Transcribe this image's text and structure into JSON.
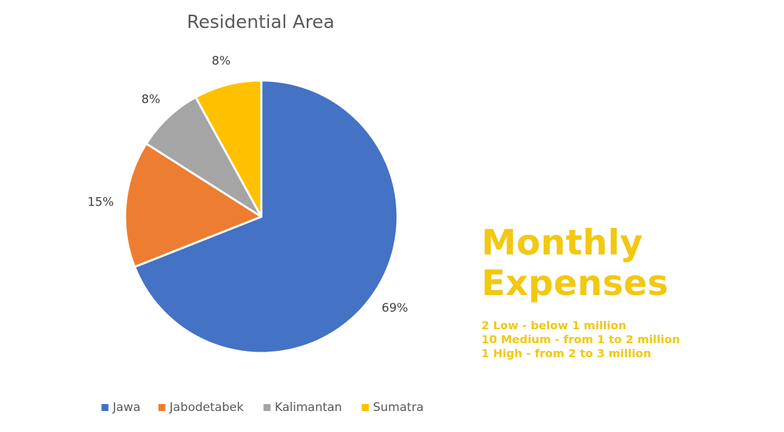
{
  "chart_data": {
    "type": "pie",
    "title": "Residential Area",
    "categories": [
      "Jawa",
      "Jabodetabek",
      "Kalimantan",
      "Sumatra"
    ],
    "values": [
      69,
      15,
      8,
      8
    ],
    "labels": [
      "69%",
      "15%",
      "8%",
      "8%"
    ],
    "colors": [
      "#4472C4",
      "#ED7D31",
      "#A5A5A5",
      "#FFC000"
    ],
    "legend_position": "bottom"
  },
  "side_panel": {
    "heading_line1": "Monthly",
    "heading_line2": "Expenses",
    "lines": [
      "2 Low - below 1 million",
      "10 Medium - from 1 to 2 million",
      "1 High - from 2 to 3 million"
    ],
    "accent_color": "#F2C811"
  }
}
